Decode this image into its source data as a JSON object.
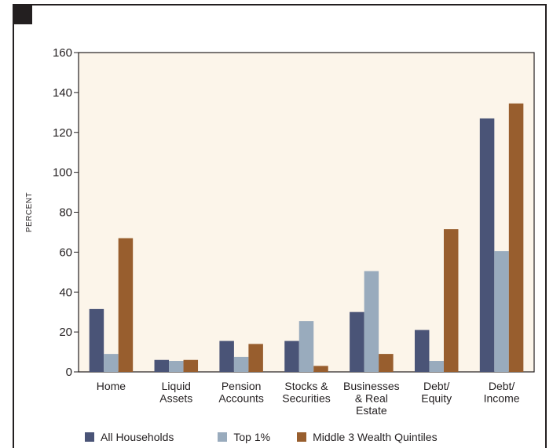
{
  "chart_data": {
    "type": "bar",
    "title": "",
    "xlabel": "",
    "ylabel": "PERCENT",
    "ylim": [
      0,
      160
    ],
    "yticks": [
      0,
      20,
      40,
      60,
      80,
      100,
      120,
      140,
      160
    ],
    "grid": false,
    "legend_position": "bottom",
    "categories": [
      [
        "Home"
      ],
      [
        "Liquid",
        "Assets"
      ],
      [
        "Pension",
        "Accounts"
      ],
      [
        "Stocks &",
        "Securities"
      ],
      [
        "Businesses",
        "& Real",
        "Estate"
      ],
      [
        "Debt/",
        "Equity"
      ],
      [
        "Debt/",
        "Income"
      ]
    ],
    "series": [
      {
        "name": "All Households",
        "color": "#4a5477",
        "values": [
          31.5,
          6,
          15.5,
          15.5,
          30,
          21,
          127
        ]
      },
      {
        "name": "Top 1%",
        "color": "#99abbd",
        "values": [
          9,
          5.5,
          7.5,
          25.5,
          50.5,
          5.5,
          60.5
        ]
      },
      {
        "name": "Middle 3 Wealth Quintiles",
        "color": "#985e2e",
        "values": [
          67,
          6,
          14,
          3,
          9,
          71.5,
          134.5
        ]
      }
    ],
    "plot_background": "#fcf5ea",
    "axis_color": "#231f20"
  }
}
